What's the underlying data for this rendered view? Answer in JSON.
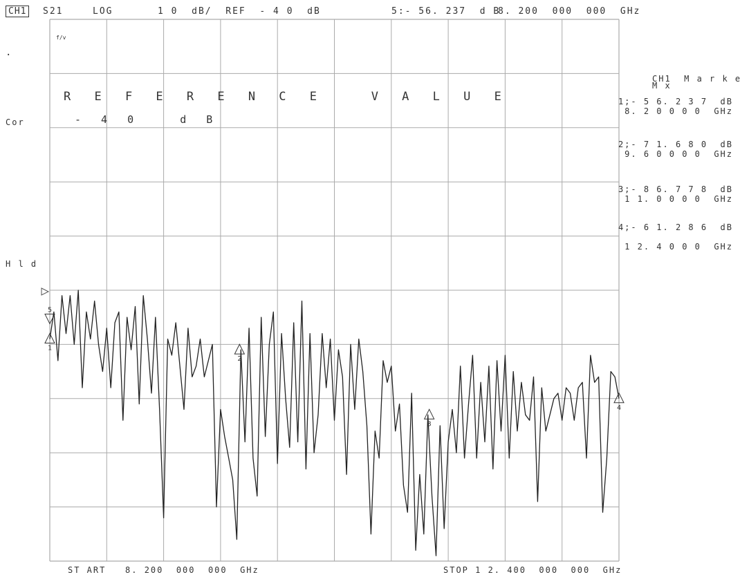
{
  "header": {
    "channel": "CH1",
    "parameter": "S21",
    "format": "LOG",
    "scale": "1 0  dB/  REF  - 4 0  dB",
    "active_marker": "5:- 56. 237  d B",
    "active_freq": "8. 200  000  000  GHz"
  },
  "left_labels": {
    "dot": "·",
    "cor": "Cor",
    "hld": "H l d",
    "tiny": "f/v"
  },
  "reference": {
    "title": "R E F E R E N C E   V A L U E",
    "value": "- 4 0   d B"
  },
  "markers_panel": {
    "title": "CH1  M a r k e r s",
    "subtitle": "M x",
    "entries": [
      {
        "value": "1;- 5 6. 2 3 7  dB",
        "freq": "8. 2 0 0 0 0  GHz"
      },
      {
        "value": "2;- 7 1. 6 8 0  dB",
        "freq": "9. 6 0 0 0 0  GHz"
      },
      {
        "value": "3;- 8 6. 7 7 8  dB",
        "freq": "1 1. 0 0 0 0  GHz"
      },
      {
        "value": "4;- 6 1. 2 8 6  dB",
        "freq": "1 2. 4 0 0 0  GHz"
      }
    ]
  },
  "footer": {
    "start": "ST ART   8. 200  000  000  GHz",
    "stop": "STOP 1 2. 400  000  000  GHz"
  },
  "chart_data": {
    "type": "line",
    "xlim": [
      8.2,
      12.4
    ],
    "ylim": [
      -140,
      -40
    ],
    "ref_level": -40,
    "scale_per_div": 10,
    "grid": true,
    "series": [
      {
        "x": [
          8.2,
          8.23,
          8.26,
          8.29,
          8.32,
          8.35,
          8.38,
          8.41,
          8.44,
          8.47,
          8.5,
          8.53,
          8.56,
          8.59,
          8.62,
          8.65,
          8.68,
          8.71,
          8.74,
          8.77,
          8.8,
          8.83,
          8.86,
          8.89,
          8.92,
          8.95,
          8.98,
          9.01,
          9.04,
          9.07,
          9.1,
          9.13,
          9.16,
          9.19,
          9.22,
          9.25,
          9.28,
          9.31,
          9.34,
          9.37,
          9.4,
          9.43,
          9.46,
          9.49,
          9.52,
          9.55,
          9.58,
          9.61,
          9.64,
          9.67,
          9.7,
          9.73,
          9.76,
          9.79,
          9.82,
          9.85,
          9.88,
          9.91,
          9.94,
          9.97,
          10.0,
          10.03,
          10.06,
          10.09,
          10.12,
          10.15,
          10.18,
          10.21,
          10.24,
          10.27,
          10.3,
          10.33,
          10.36,
          10.39,
          10.42,
          10.45,
          10.48,
          10.51,
          10.54,
          10.57,
          10.6,
          10.63,
          10.66,
          10.69,
          10.72,
          10.75,
          10.78,
          10.81,
          10.84,
          10.87,
          10.9,
          10.93,
          10.96,
          10.99,
          11.02,
          11.05,
          11.08,
          11.11,
          11.14,
          11.17,
          11.2,
          11.23,
          11.26,
          11.29,
          11.32,
          11.35,
          11.38,
          11.41,
          11.44,
          11.47,
          11.5,
          11.53,
          11.56,
          11.59,
          11.62,
          11.65,
          11.68,
          11.71,
          11.74,
          11.77,
          11.8,
          11.83,
          11.86,
          11.89,
          11.92,
          11.95,
          11.98,
          12.01,
          12.04,
          12.07,
          12.1,
          12.13,
          12.16,
          12.19,
          12.22,
          12.25,
          12.28,
          12.31,
          12.34,
          12.37,
          12.4
        ],
        "y": [
          -99,
          -94,
          -103,
          -91,
          -98,
          -91,
          -100,
          -90,
          -108,
          -94,
          -99,
          -92,
          -100,
          -105,
          -97,
          -108,
          -96,
          -94,
          -114,
          -95,
          -101,
          -93,
          -111,
          -91,
          -99,
          -109,
          -95,
          -112,
          -132,
          -99,
          -102,
          -96,
          -104,
          -112,
          -97,
          -106,
          -104,
          -99,
          -106,
          -103,
          -100,
          -130,
          -112,
          -117,
          -121,
          -125,
          -136,
          -101,
          -118,
          -97,
          -121,
          -128,
          -95,
          -117,
          -100,
          -94,
          -122,
          -98,
          -110,
          -119,
          -96,
          -118,
          -92,
          -123,
          -98,
          -120,
          -113,
          -98,
          -108,
          -99,
          -114,
          -101,
          -106,
          -124,
          -100,
          -112,
          -99,
          -105,
          -115,
          -135,
          -116,
          -121,
          -103,
          -107,
          -104,
          -116,
          -111,
          -126,
          -131,
          -109,
          -138,
          -124,
          -135,
          -113,
          -128,
          -139,
          -115,
          -134,
          -118,
          -112,
          -120,
          -104,
          -121,
          -111,
          -102,
          -121,
          -107,
          -118,
          -104,
          -123,
          -103,
          -116,
          -102,
          -121,
          -105,
          -116,
          -107,
          -113,
          -114,
          -106,
          -129,
          -108,
          -116,
          -113,
          -110,
          -109,
          -114,
          -108,
          -109,
          -114,
          -108,
          -107,
          -121,
          -102,
          -107,
          -106,
          -131,
          -121,
          -105,
          -106,
          -110
        ]
      }
    ],
    "markers": [
      {
        "id": "1",
        "x": 8.2,
        "y": -56.237
      },
      {
        "id": "2",
        "x": 9.6,
        "y": -71.68
      },
      {
        "id": "3",
        "x": 11.0,
        "y": -86.778
      },
      {
        "id": "4",
        "x": 12.4,
        "y": -61.286
      },
      {
        "id": "5",
        "x": 8.2,
        "y": -56.237
      }
    ]
  }
}
